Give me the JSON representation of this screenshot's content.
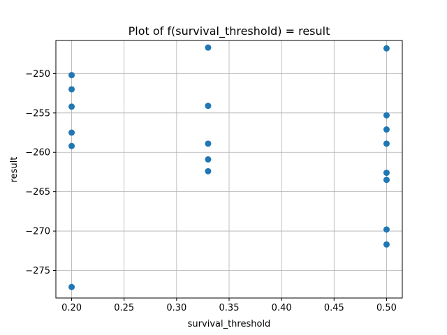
{
  "chart_data": {
    "type": "scatter",
    "title": "Plot of f(survival_threshold) = result",
    "xlabel": "survival_threshold",
    "ylabel": "result",
    "xlim": [
      0.185,
      0.515
    ],
    "ylim": [
      -278.5,
      -245.8
    ],
    "xticks": [
      0.2,
      0.25,
      0.3,
      0.35,
      0.4,
      0.45,
      0.5
    ],
    "xtick_labels": [
      "0.20",
      "0.25",
      "0.30",
      "0.35",
      "0.40",
      "0.45",
      "0.50"
    ],
    "yticks": [
      -275,
      -270,
      -265,
      -260,
      -255,
      -250
    ],
    "ytick_labels": [
      "−275",
      "−270",
      "−265",
      "−260",
      "−255",
      "−250"
    ],
    "grid": true,
    "marker_color": "#1f77b4",
    "points": [
      {
        "x": 0.2,
        "y": -250.2
      },
      {
        "x": 0.2,
        "y": -252.0
      },
      {
        "x": 0.2,
        "y": -254.2
      },
      {
        "x": 0.2,
        "y": -257.5
      },
      {
        "x": 0.2,
        "y": -259.2
      },
      {
        "x": 0.2,
        "y": -277.1
      },
      {
        "x": 0.33,
        "y": -246.7
      },
      {
        "x": 0.33,
        "y": -254.1
      },
      {
        "x": 0.33,
        "y": -258.9
      },
      {
        "x": 0.33,
        "y": -260.9
      },
      {
        "x": 0.33,
        "y": -262.4
      },
      {
        "x": 0.5,
        "y": -246.8
      },
      {
        "x": 0.5,
        "y": -255.3
      },
      {
        "x": 0.5,
        "y": -257.1
      },
      {
        "x": 0.5,
        "y": -258.9
      },
      {
        "x": 0.5,
        "y": -262.6
      },
      {
        "x": 0.5,
        "y": -263.5
      },
      {
        "x": 0.5,
        "y": -269.8
      },
      {
        "x": 0.5,
        "y": -271.7
      }
    ]
  }
}
